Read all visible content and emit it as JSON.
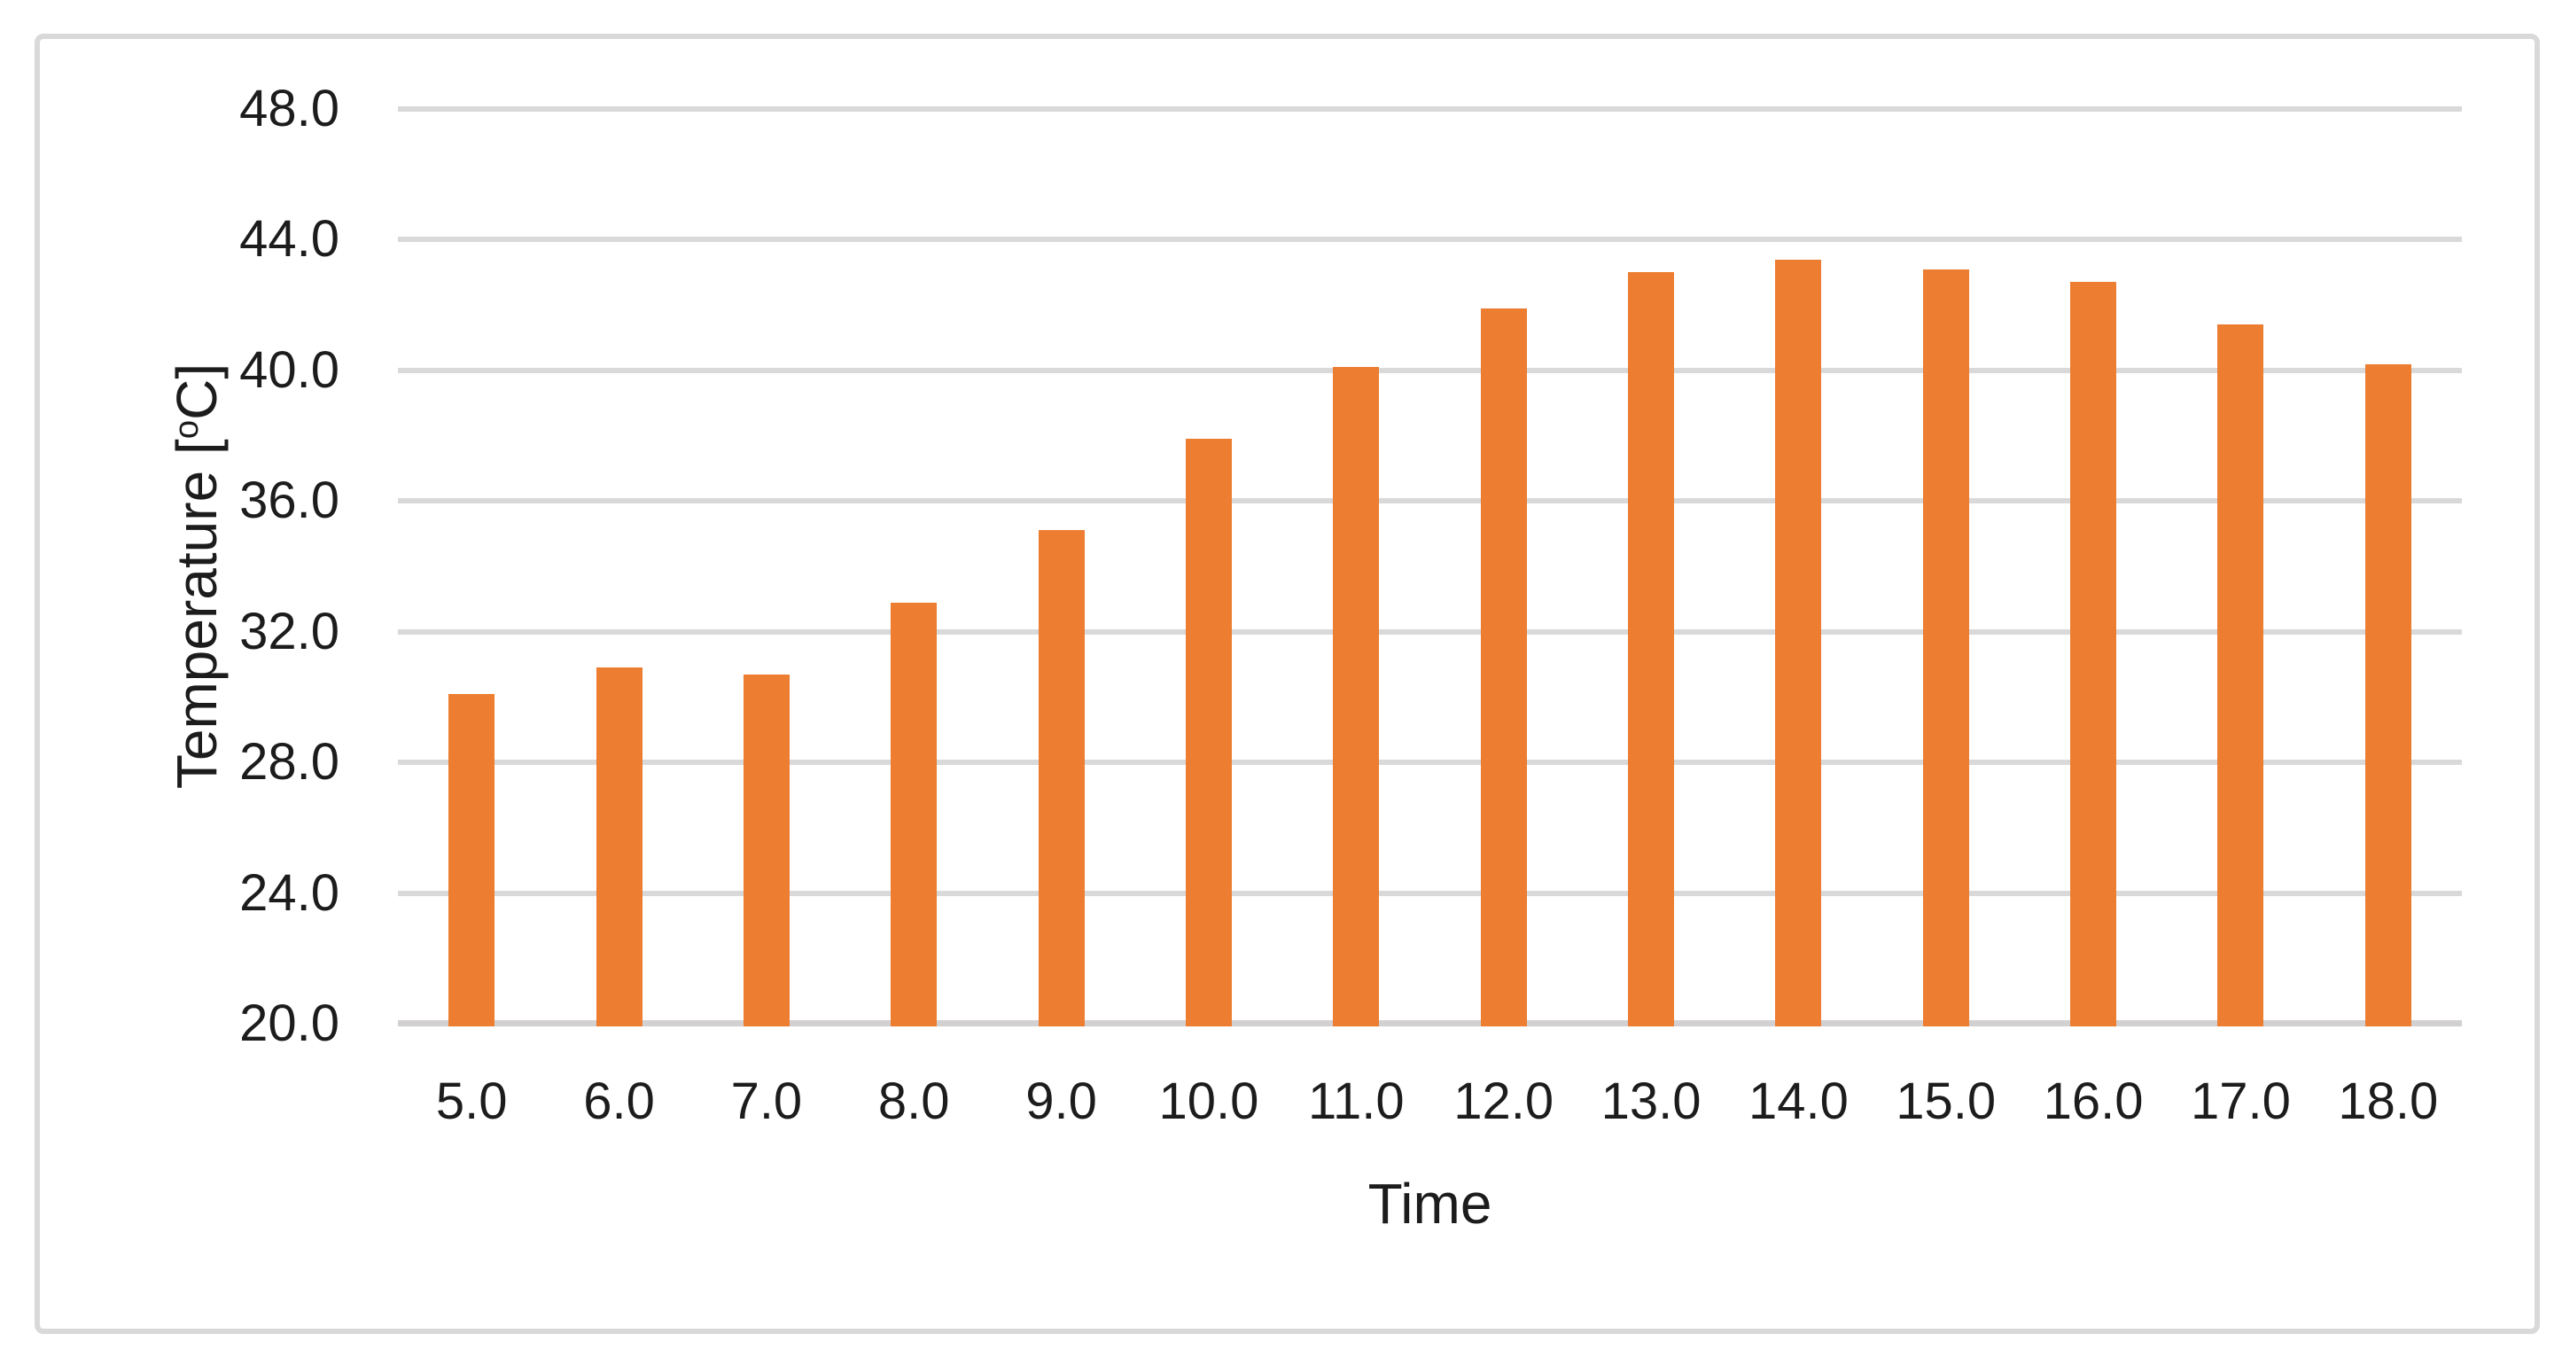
{
  "chart_data": {
    "type": "bar",
    "title": "",
    "xlabel": "Time",
    "ylabel": "Temperature [°C]",
    "categories": [
      "5.0",
      "6.0",
      "7.0",
      "8.0",
      "9.0",
      "10.0",
      "11.0",
      "12.0",
      "13.0",
      "14.0",
      "15.0",
      "16.0",
      "17.0",
      "18.0"
    ],
    "values": [
      30.1,
      30.9,
      30.7,
      32.9,
      35.1,
      37.9,
      40.1,
      41.9,
      43.0,
      43.4,
      43.1,
      42.7,
      41.4,
      40.2
    ],
    "ylim": [
      20.0,
      48.0
    ],
    "y_ticks": [
      20.0,
      24.0,
      28.0,
      32.0,
      36.0,
      40.0,
      44.0,
      48.0
    ],
    "y_tick_labels": [
      "20.0",
      "24.0",
      "28.0",
      "32.0",
      "36.0",
      "40.0",
      "44.0",
      "48.0"
    ],
    "grid": "horizontal",
    "legend": "none",
    "bar_color": "#ED7D31"
  },
  "y_axis_title": {
    "prefix": "Temperature [",
    "sup": "o",
    "suffix": "C]"
  },
  "colors": {
    "bar": "#ED7D31",
    "gridline": "#D9D9D9",
    "axis_line": "#D2D0D0",
    "chart_border": "#D9D9D9",
    "text": "#1C1C1C",
    "background": "#FFFFFF"
  }
}
